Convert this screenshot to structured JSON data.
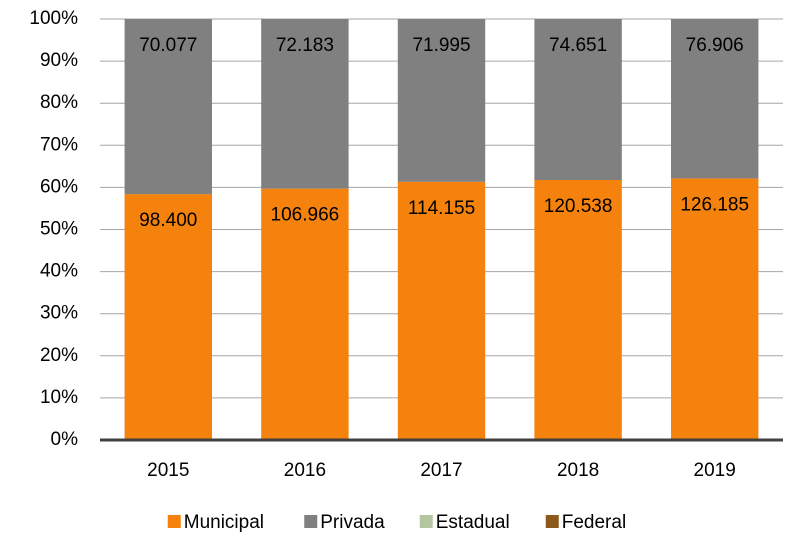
{
  "chart_data": {
    "type": "stacked_bar_percent",
    "categories": [
      "2015",
      "2016",
      "2017",
      "2018",
      "2019"
    ],
    "series": [
      {
        "name": "Municipal",
        "color": "#f5820d",
        "values": [
          98400,
          106966,
          114155,
          120538,
          126185
        ],
        "value_labels": [
          "98.400",
          "106.966",
          "114.155",
          "120.538",
          "126.185"
        ]
      },
      {
        "name": "Privada",
        "color": "#808080",
        "values": [
          70077,
          72183,
          71995,
          74651,
          76906
        ],
        "value_labels": [
          "70.077",
          "72.183",
          "71.995",
          "74.651",
          "76.906"
        ]
      },
      {
        "name": "Estadual",
        "color": "#b3c6a0",
        "values": [
          0,
          0,
          0,
          0,
          0
        ]
      },
      {
        "name": "Federal",
        "color": "#8b5a1b",
        "values": [
          0,
          0,
          0,
          0,
          0
        ]
      }
    ],
    "ylim": [
      0,
      100
    ],
    "yticks": [
      {
        "value": 0,
        "label": "0%"
      },
      {
        "value": 10,
        "label": "10%"
      },
      {
        "value": 20,
        "label": "20%"
      },
      {
        "value": 30,
        "label": "30%"
      },
      {
        "value": 40,
        "label": "40%"
      },
      {
        "value": 50,
        "label": "50%"
      },
      {
        "value": 60,
        "label": "60%"
      },
      {
        "value": 70,
        "label": "70%"
      },
      {
        "value": 80,
        "label": "80%"
      },
      {
        "value": 90,
        "label": "90%"
      },
      {
        "value": 100,
        "label": "100%"
      }
    ],
    "grid": true,
    "legend": "bottom"
  }
}
